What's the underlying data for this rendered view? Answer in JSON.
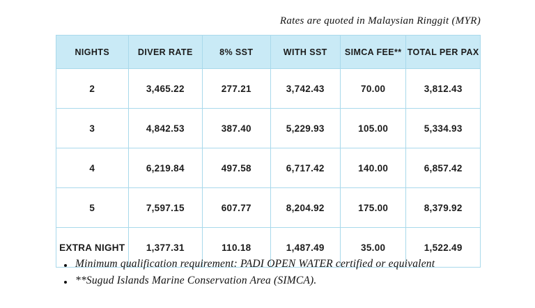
{
  "note": "Rates are quoted in Malaysian Ringgit (MYR)",
  "table": {
    "headers": [
      "NIGHTS",
      "DIVER RATE",
      "8% SST",
      "WITH SST",
      "SIMCA FEE**",
      "TOTAL PER PAX"
    ],
    "rows": [
      [
        "2",
        "3,465.22",
        "277.21",
        "3,742.43",
        "70.00",
        "3,812.43"
      ],
      [
        "3",
        "4,842.53",
        "387.40",
        "5,229.93",
        "105.00",
        "5,334.93"
      ],
      [
        "4",
        "6,219.84",
        "497.58",
        "6,717.42",
        "140.00",
        "6,857.42"
      ],
      [
        "5",
        "7,597.15",
        "607.77",
        "8,204.92",
        "175.00",
        "8,379.92"
      ],
      [
        "EXTRA NIGHT",
        "1,377.31",
        "110.18",
        "1,487.49",
        "35.00",
        "1,522.49"
      ]
    ]
  },
  "footnotes": [
    "Minimum qualification requirement: PADI OPEN WATER certified or equivalent",
    "**Sugud Islands Marine Conservation Area (SIMCA)."
  ],
  "colors": {
    "header_bg": "#c9eaf6",
    "border": "#a9d9eb",
    "text": "#1b1b1b"
  }
}
